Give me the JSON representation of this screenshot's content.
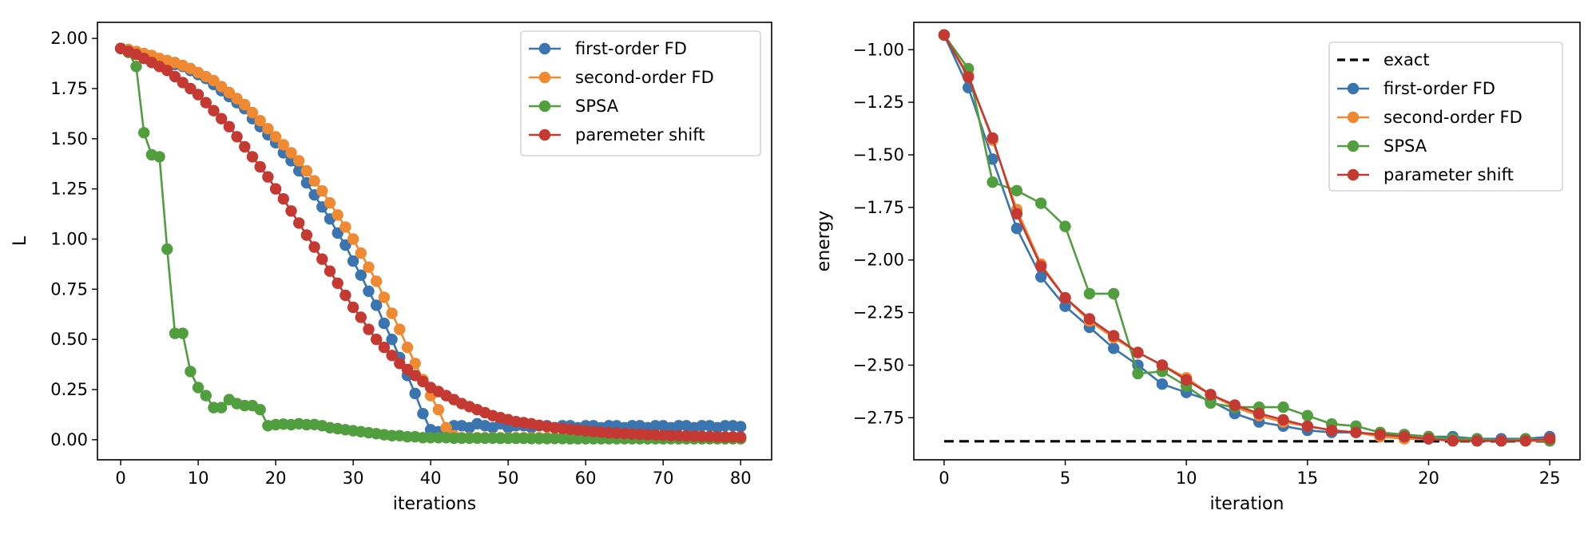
{
  "chart_data": [
    {
      "type": "line",
      "xlabel": "iterations",
      "ylabel": "L",
      "xlim": [
        -3,
        84
      ],
      "ylim": [
        -0.1,
        2.08
      ],
      "xticks": [
        0,
        10,
        20,
        30,
        40,
        50,
        60,
        70,
        80
      ],
      "xtick_labels": [
        "0",
        "10",
        "20",
        "30",
        "40",
        "50",
        "60",
        "70",
        "80"
      ],
      "yticks": [
        0.0,
        0.25,
        0.5,
        0.75,
        1.0,
        1.25,
        1.5,
        1.75,
        2.0
      ],
      "ytick_labels": [
        "0.00",
        "0.25",
        "0.50",
        "0.75",
        "1.00",
        "1.25",
        "1.50",
        "1.75",
        "2.00"
      ],
      "grid": false,
      "legend_position": "top-right",
      "series": [
        {
          "name": "first-order FD",
          "color": "#3b75af",
          "x": [
            0,
            1,
            2,
            3,
            4,
            5,
            6,
            7,
            8,
            9,
            10,
            11,
            12,
            13,
            14,
            15,
            16,
            17,
            18,
            19,
            20,
            21,
            22,
            23,
            24,
            25,
            26,
            27,
            28,
            29,
            30,
            31,
            32,
            33,
            34,
            35,
            36,
            37,
            38,
            39,
            40,
            41,
            42,
            43,
            44,
            45,
            46,
            47,
            48,
            49,
            50,
            51,
            52,
            53,
            54,
            55,
            56,
            57,
            58,
            59,
            60,
            61,
            62,
            63,
            64,
            65,
            66,
            67,
            68,
            69,
            70,
            71,
            72,
            73,
            74,
            75,
            76,
            77,
            78,
            79,
            80
          ],
          "y": [
            1.95,
            1.94,
            1.93,
            1.92,
            1.91,
            1.895,
            1.88,
            1.87,
            1.86,
            1.84,
            1.82,
            1.8,
            1.77,
            1.74,
            1.71,
            1.68,
            1.65,
            1.6,
            1.56,
            1.52,
            1.48,
            1.43,
            1.39,
            1.34,
            1.28,
            1.22,
            1.16,
            1.1,
            1.03,
            0.97,
            0.89,
            0.82,
            0.74,
            0.67,
            0.58,
            0.5,
            0.41,
            0.32,
            0.23,
            0.13,
            0.05,
            0.04,
            0.05,
            0.07,
            0.07,
            0.06,
            0.08,
            0.07,
            0.06,
            0.08,
            0.06,
            0.07,
            0.07,
            0.06,
            0.07,
            0.07,
            0.06,
            0.07,
            0.07,
            0.06,
            0.07,
            0.07,
            0.06,
            0.07,
            0.07,
            0.06,
            0.07,
            0.07,
            0.06,
            0.07,
            0.07,
            0.06,
            0.07,
            0.07,
            0.06,
            0.07,
            0.07,
            0.06,
            0.07,
            0.07,
            0.065
          ]
        },
        {
          "name": "second-order FD",
          "color": "#ef8a33",
          "x": [
            0,
            1,
            2,
            3,
            4,
            5,
            6,
            7,
            8,
            9,
            10,
            11,
            12,
            13,
            14,
            15,
            16,
            17,
            18,
            19,
            20,
            21,
            22,
            23,
            24,
            25,
            26,
            27,
            28,
            29,
            30,
            31,
            32,
            33,
            34,
            35,
            36,
            37,
            38,
            39,
            40,
            41,
            42,
            43,
            44,
            45,
            46,
            47,
            48,
            49,
            50,
            51,
            52,
            53,
            54,
            55,
            56,
            57,
            58,
            59,
            60,
            61,
            62,
            63,
            64,
            65,
            66,
            67,
            68,
            69,
            70,
            71,
            72,
            73,
            74,
            75,
            76,
            77,
            78,
            79,
            80
          ],
          "y": [
            1.95,
            1.945,
            1.935,
            1.925,
            1.915,
            1.9,
            1.89,
            1.88,
            1.865,
            1.85,
            1.83,
            1.81,
            1.79,
            1.76,
            1.73,
            1.7,
            1.67,
            1.63,
            1.59,
            1.55,
            1.51,
            1.47,
            1.43,
            1.39,
            1.34,
            1.29,
            1.24,
            1.18,
            1.12,
            1.06,
            1.0,
            0.93,
            0.86,
            0.79,
            0.71,
            0.63,
            0.55,
            0.46,
            0.38,
            0.3,
            0.22,
            0.15,
            0.06,
            0.02,
            0.01,
            0.01,
            0.01,
            0.01,
            0.01,
            0.01,
            0.01,
            0.01,
            0.01,
            0.01,
            0.01,
            0.01,
            0.01,
            0.01,
            0.01,
            0.01,
            0.01,
            0.01,
            0.01,
            0.01,
            0.01,
            0.01,
            0.01,
            0.01,
            0.01,
            0.01,
            0.01,
            0.01,
            0.01,
            0.01,
            0.01,
            0.01,
            0.01,
            0.01,
            0.01,
            0.01,
            0.01
          ]
        },
        {
          "name": "SPSA",
          "color": "#519e3e",
          "x": [
            0,
            1,
            2,
            3,
            4,
            5,
            6,
            7,
            8,
            9,
            10,
            11,
            12,
            13,
            14,
            15,
            16,
            17,
            18,
            19,
            20,
            21,
            22,
            23,
            24,
            25,
            26,
            27,
            28,
            29,
            30,
            31,
            32,
            33,
            34,
            35,
            36,
            37,
            38,
            39,
            40,
            41,
            42,
            43,
            44,
            45,
            46,
            47,
            48,
            49,
            50,
            51,
            52,
            53,
            54,
            55,
            56,
            57,
            58,
            59,
            60,
            61,
            62,
            63,
            64,
            65,
            66,
            67,
            68,
            69,
            70,
            71,
            72,
            73,
            74,
            75,
            76,
            77,
            78,
            79,
            80
          ],
          "y": [
            1.95,
            1.93,
            1.86,
            1.53,
            1.42,
            1.41,
            0.95,
            0.53,
            0.53,
            0.34,
            0.26,
            0.22,
            0.16,
            0.16,
            0.2,
            0.18,
            0.17,
            0.17,
            0.15,
            0.07,
            0.075,
            0.078,
            0.075,
            0.08,
            0.075,
            0.076,
            0.07,
            0.06,
            0.055,
            0.05,
            0.045,
            0.04,
            0.035,
            0.03,
            0.025,
            0.02,
            0.02,
            0.015,
            0.015,
            0.01,
            0.01,
            0.01,
            0.01,
            0.008,
            0.008,
            0.008,
            0.008,
            0.008,
            0.008,
            0.007,
            0.007,
            0.007,
            0.007,
            0.006,
            0.006,
            0.006,
            0.006,
            0.006,
            0.005,
            0.005,
            0.005,
            0.005,
            0.005,
            0.005,
            0.005,
            0.005,
            0.005,
            0.005,
            0.005,
            0.005,
            0.005,
            0.005,
            0.005,
            0.005,
            0.005,
            0.005,
            0.005,
            0.005,
            0.005,
            0.005,
            0.005
          ]
        },
        {
          "name": "paremeter shift",
          "color": "#c43a32",
          "x": [
            0,
            1,
            2,
            3,
            4,
            5,
            6,
            7,
            8,
            9,
            10,
            11,
            12,
            13,
            14,
            15,
            16,
            17,
            18,
            19,
            20,
            21,
            22,
            23,
            24,
            25,
            26,
            27,
            28,
            29,
            30,
            31,
            32,
            33,
            34,
            35,
            36,
            37,
            38,
            39,
            40,
            41,
            42,
            43,
            44,
            45,
            46,
            47,
            48,
            49,
            50,
            51,
            52,
            53,
            54,
            55,
            56,
            57,
            58,
            59,
            60,
            61,
            62,
            63,
            64,
            65,
            66,
            67,
            68,
            69,
            70,
            71,
            72,
            73,
            74,
            75,
            76,
            77,
            78,
            79,
            80
          ],
          "y": [
            1.95,
            1.935,
            1.92,
            1.9,
            1.88,
            1.86,
            1.84,
            1.81,
            1.78,
            1.75,
            1.72,
            1.68,
            1.64,
            1.6,
            1.56,
            1.51,
            1.46,
            1.41,
            1.36,
            1.31,
            1.25,
            1.2,
            1.14,
            1.08,
            1.02,
            0.96,
            0.9,
            0.84,
            0.78,
            0.72,
            0.66,
            0.61,
            0.55,
            0.5,
            0.46,
            0.42,
            0.38,
            0.35,
            0.32,
            0.29,
            0.26,
            0.24,
            0.22,
            0.2,
            0.18,
            0.165,
            0.15,
            0.135,
            0.12,
            0.11,
            0.1,
            0.09,
            0.085,
            0.08,
            0.072,
            0.066,
            0.06,
            0.056,
            0.052,
            0.048,
            0.044,
            0.041,
            0.038,
            0.035,
            0.033,
            0.031,
            0.029,
            0.027,
            0.025,
            0.024,
            0.022,
            0.021,
            0.02,
            0.019,
            0.018,
            0.017,
            0.016,
            0.015,
            0.014,
            0.014,
            0.013
          ]
        }
      ]
    },
    {
      "type": "line",
      "xlabel": "iteration",
      "ylabel": "energy",
      "xlim": [
        -1.25,
        26.25
      ],
      "ylim": [
        -2.95,
        -0.87
      ],
      "xticks": [
        0,
        5,
        10,
        15,
        20,
        25
      ],
      "xtick_labels": [
        "0",
        "5",
        "10",
        "15",
        "20",
        "25"
      ],
      "yticks": [
        -1.0,
        -1.25,
        -1.5,
        -1.75,
        -2.0,
        -2.25,
        -2.5,
        -2.75
      ],
      "ytick_labels": [
        "−1.00",
        "−1.25",
        "−1.50",
        "−1.75",
        "−2.00",
        "−2.25",
        "−2.50",
        "−2.75"
      ],
      "grid": false,
      "legend_position": "top-right",
      "series": [
        {
          "name": "exact",
          "color": "#000000",
          "style": "dashed",
          "x": [
            0,
            25
          ],
          "y": [
            -2.862,
            -2.862
          ]
        },
        {
          "name": "first-order FD",
          "color": "#3b75af",
          "x": [
            0,
            1,
            2,
            3,
            4,
            5,
            6,
            7,
            8,
            9,
            10,
            11,
            12,
            13,
            14,
            15,
            16,
            17,
            18,
            19,
            20,
            21,
            22,
            23,
            24,
            25
          ],
          "y": [
            -0.93,
            -1.18,
            -1.52,
            -1.85,
            -2.08,
            -2.22,
            -2.32,
            -2.42,
            -2.5,
            -2.59,
            -2.63,
            -2.67,
            -2.73,
            -2.77,
            -2.79,
            -2.81,
            -2.82,
            -2.82,
            -2.83,
            -2.83,
            -2.84,
            -2.84,
            -2.85,
            -2.85,
            -2.85,
            -2.84
          ]
        },
        {
          "name": "second-order FD",
          "color": "#ef8a33",
          "x": [
            0,
            1,
            2,
            3,
            4,
            5,
            6,
            7,
            8,
            9,
            10,
            11,
            12,
            13,
            14,
            15,
            16,
            17,
            18,
            19,
            20,
            21,
            22,
            23,
            24,
            25
          ],
          "y": [
            -0.93,
            -1.12,
            -1.43,
            -1.76,
            -2.02,
            -2.18,
            -2.29,
            -2.37,
            -2.44,
            -2.5,
            -2.56,
            -2.64,
            -2.7,
            -2.74,
            -2.77,
            -2.79,
            -2.81,
            -2.82,
            -2.84,
            -2.85,
            -2.85,
            -2.86,
            -2.86,
            -2.86,
            -2.86,
            -2.86
          ]
        },
        {
          "name": "SPSA",
          "color": "#519e3e",
          "x": [
            0,
            1,
            2,
            3,
            4,
            5,
            6,
            7,
            8,
            9,
            10,
            11,
            12,
            13,
            14,
            15,
            16,
            17,
            18,
            19,
            20,
            21,
            22,
            23,
            24,
            25
          ],
          "y": [
            -0.93,
            -1.09,
            -1.63,
            -1.67,
            -1.73,
            -1.84,
            -2.16,
            -2.16,
            -2.54,
            -2.53,
            -2.6,
            -2.68,
            -2.7,
            -2.7,
            -2.7,
            -2.74,
            -2.78,
            -2.79,
            -2.82,
            -2.83,
            -2.84,
            -2.85,
            -2.85,
            -2.86,
            -2.85,
            -2.86
          ]
        },
        {
          "name": "parameter shift",
          "color": "#c43a32",
          "x": [
            0,
            1,
            2,
            3,
            4,
            5,
            6,
            7,
            8,
            9,
            10,
            11,
            12,
            13,
            14,
            15,
            16,
            17,
            18,
            19,
            20,
            21,
            22,
            23,
            24,
            25
          ],
          "y": [
            -0.93,
            -1.13,
            -1.42,
            -1.78,
            -2.03,
            -2.18,
            -2.28,
            -2.36,
            -2.44,
            -2.5,
            -2.57,
            -2.64,
            -2.69,
            -2.73,
            -2.76,
            -2.79,
            -2.81,
            -2.82,
            -2.83,
            -2.84,
            -2.85,
            -2.86,
            -2.86,
            -2.86,
            -2.86,
            -2.85
          ]
        }
      ]
    }
  ]
}
